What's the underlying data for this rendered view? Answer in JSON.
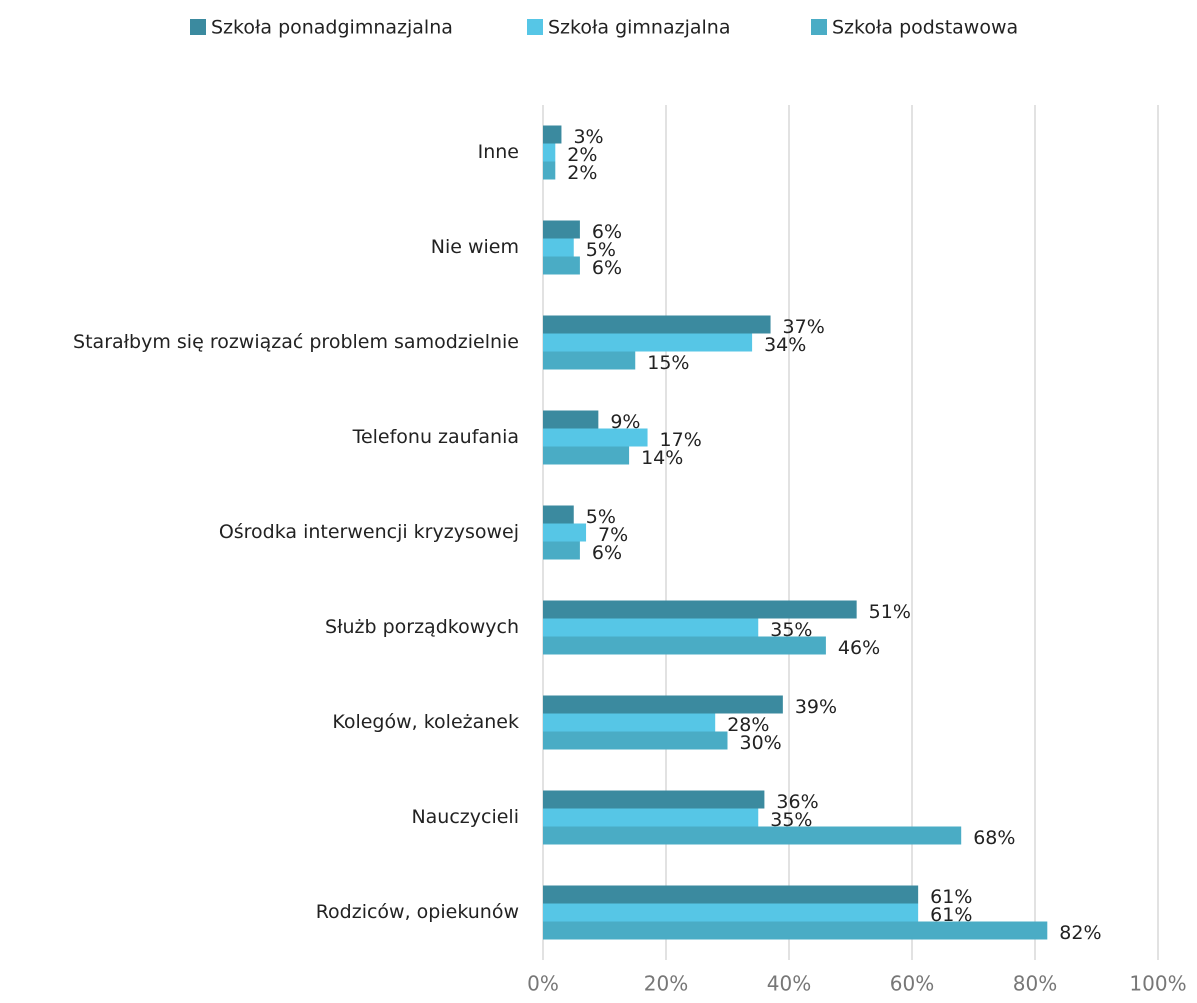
{
  "chart_data": {
    "type": "bar",
    "orientation": "horizontal",
    "categories": [
      "Inne",
      "Nie wiem",
      "Starałbym się rozwiązać problem samodzielnie",
      "Telefonu zaufania",
      "Ośrodka interwencji kryzysowej",
      "Służb porządkowych",
      "Kolegów, koleżanek",
      "Nauczycieli",
      "Rodziców, opiekunów"
    ],
    "series": [
      {
        "name": "Szkoła ponadgimnazjalna",
        "color": "#3b8a9f",
        "values": [
          3,
          6,
          37,
          9,
          5,
          51,
          39,
          36,
          61
        ],
        "value_labels": [
          "3%",
          "6%",
          "37%",
          "9%",
          "5%",
          "51%",
          "39%",
          "36%",
          "61%"
        ]
      },
      {
        "name": "Szkoła gimnazjalna",
        "color": "#56c6e6",
        "values": [
          2,
          5,
          34,
          17,
          7,
          35,
          28,
          35,
          61
        ],
        "value_labels": [
          "2%",
          "5%",
          "34%",
          "17%",
          "7%",
          "35%",
          "28%",
          "35%",
          "61%"
        ]
      },
      {
        "name": "Szkoła podstawowa",
        "color": "#4aacc5",
        "values": [
          2,
          6,
          15,
          14,
          6,
          46,
          30,
          68,
          82
        ],
        "value_labels": [
          "2%",
          "6%",
          "15%",
          "14%",
          "6%",
          "46%",
          "30%",
          "68%",
          "82%"
        ]
      }
    ],
    "xlim": [
      0,
      100
    ],
    "xticks": [
      {
        "value": 0,
        "label": "0%"
      },
      {
        "value": 20,
        "label": "20%"
      },
      {
        "value": 40,
        "label": "40%"
      },
      {
        "value": 60,
        "label": "60%"
      },
      {
        "value": 80,
        "label": "80%"
      },
      {
        "value": 100,
        "label": "100%"
      }
    ],
    "grid": true,
    "legend": "top"
  }
}
